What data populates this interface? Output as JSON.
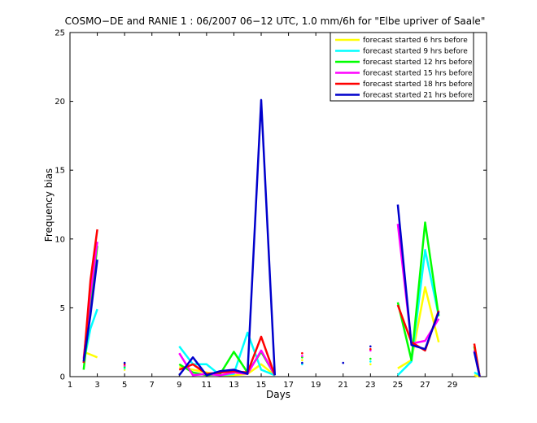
{
  "chart_data": {
    "type": "line",
    "title": "COSMO−DE and RANIE 1 : 06/2007 06−12 UTC, 1.0 mm/6h for \"Elbe upriver of Saale\"",
    "xlabel": "Days",
    "ylabel": "Frequency bias",
    "xlim": [
      1,
      31.5
    ],
    "ylim": [
      0,
      25
    ],
    "xticks": [
      1,
      3,
      5,
      7,
      9,
      11,
      13,
      15,
      17,
      19,
      21,
      23,
      25,
      27,
      29
    ],
    "yticks": [
      0,
      5,
      10,
      15,
      20,
      25
    ],
    "grid": false,
    "legend_position": "top-right",
    "series": [
      {
        "name": "forecast started 6 hrs before",
        "color": "#ffff00",
        "points": [
          [
            2,
            1.8
          ],
          [
            2.5,
            1.6
          ],
          [
            3,
            1.4
          ],
          [
            9,
            0.7
          ],
          [
            10,
            0.5
          ],
          [
            11,
            0.3
          ],
          [
            12,
            0.1
          ],
          [
            13,
            0.1
          ],
          [
            14,
            0.2
          ],
          [
            15,
            0.9
          ],
          [
            16,
            0.1
          ],
          [
            25,
            0.6
          ],
          [
            26,
            1.2
          ],
          [
            27,
            6.5
          ],
          [
            28,
            2.5
          ],
          [
            30.6,
            0.1
          ],
          [
            31,
            0
          ]
        ],
        "dots": [
          [
            5,
            0.5
          ],
          [
            18,
            1.2
          ],
          [
            23,
            0.9
          ]
        ]
      },
      {
        "name": "forecast started 9 hrs before",
        "color": "#00ffff",
        "points": [
          [
            2,
            1.0
          ],
          [
            2.5,
            3.5
          ],
          [
            3,
            4.9
          ],
          [
            9,
            2.2
          ],
          [
            10,
            0.9
          ],
          [
            11,
            0.9
          ],
          [
            12,
            0.1
          ],
          [
            13,
            0.2
          ],
          [
            14,
            3.2
          ],
          [
            15,
            0.5
          ],
          [
            16,
            0.1
          ],
          [
            25,
            0.1
          ],
          [
            26,
            1.1
          ],
          [
            27,
            9.2
          ],
          [
            28,
            4.4
          ],
          [
            30.6,
            0.3
          ],
          [
            31,
            0.1
          ]
        ],
        "dots": [
          [
            5,
            0.6
          ],
          [
            18,
            0.9
          ],
          [
            23,
            1.1
          ]
        ]
      },
      {
        "name": "forecast started 12 hrs before",
        "color": "#00ff00",
        "points": [
          [
            2,
            0.5
          ],
          [
            2.5,
            5
          ],
          [
            3,
            9.5
          ],
          [
            9,
            0.9
          ],
          [
            10,
            0.3
          ],
          [
            11,
            0.1
          ],
          [
            12,
            0.2
          ],
          [
            13,
            1.8
          ],
          [
            14,
            0.3
          ],
          [
            15,
            1.8
          ],
          [
            16,
            0.1
          ],
          [
            25,
            5.4
          ],
          [
            26,
            1.2
          ],
          [
            27,
            11.2
          ],
          [
            28,
            4.4
          ],
          [
            30.6,
            2.2
          ],
          [
            31,
            0
          ]
        ],
        "dots": [
          [
            5,
            0.7
          ],
          [
            18,
            1.4
          ],
          [
            23,
            1.3
          ]
        ]
      },
      {
        "name": "forecast started 15 hrs before",
        "color": "#ff00ff",
        "points": [
          [
            2,
            1.3
          ],
          [
            2.5,
            6
          ],
          [
            3,
            9.8
          ],
          [
            9,
            1.7
          ],
          [
            10,
            0.1
          ],
          [
            11,
            0.2
          ],
          [
            12,
            0.1
          ],
          [
            13,
            0.3
          ],
          [
            14,
            0.2
          ],
          [
            15,
            1.9
          ],
          [
            16,
            0.1
          ],
          [
            25,
            11.1
          ],
          [
            26,
            2.4
          ],
          [
            27,
            2.6
          ],
          [
            28,
            4.2
          ],
          [
            30.6,
            1.9
          ],
          [
            31,
            0
          ]
        ],
        "dots": [
          [
            5,
            0.8
          ],
          [
            18,
            1.5
          ],
          [
            23,
            1.9
          ]
        ]
      },
      {
        "name": "forecast started 18 hrs before",
        "color": "#ff0000",
        "points": [
          [
            2,
            1.0
          ],
          [
            2.5,
            7
          ],
          [
            3,
            10.7
          ],
          [
            9,
            0.5
          ],
          [
            10,
            0.9
          ],
          [
            11,
            0.2
          ],
          [
            12,
            0.3
          ],
          [
            13,
            0.4
          ],
          [
            14,
            0.3
          ],
          [
            15,
            2.9
          ],
          [
            16,
            0.1
          ],
          [
            25,
            5.2
          ],
          [
            26,
            2.5
          ],
          [
            27,
            1.9
          ],
          [
            28,
            4.8
          ],
          [
            30.6,
            2.4
          ],
          [
            31,
            0
          ]
        ],
        "dots": [
          [
            5,
            0.9
          ],
          [
            18,
            1.7
          ],
          [
            23,
            2.0
          ]
        ]
      },
      {
        "name": "forecast started 21 hrs before",
        "color": "#0000cc",
        "points": [
          [
            2,
            1.1
          ],
          [
            2.5,
            4.5
          ],
          [
            3,
            8.5
          ],
          [
            9,
            0.1
          ],
          [
            10,
            1.4
          ],
          [
            11,
            0.1
          ],
          [
            12,
            0.4
          ],
          [
            13,
            0.5
          ],
          [
            14,
            0.2
          ],
          [
            15,
            20.1
          ],
          [
            16,
            0.1
          ],
          [
            25,
            12.5
          ],
          [
            26,
            2.3
          ],
          [
            27,
            2.0
          ],
          [
            28,
            4.7
          ],
          [
            30.6,
            1.8
          ],
          [
            31,
            0
          ]
        ],
        "dots": [
          [
            5,
            1.0
          ],
          [
            18,
            1.0
          ],
          [
            21,
            1.0
          ],
          [
            23,
            2.2
          ]
        ]
      }
    ]
  }
}
